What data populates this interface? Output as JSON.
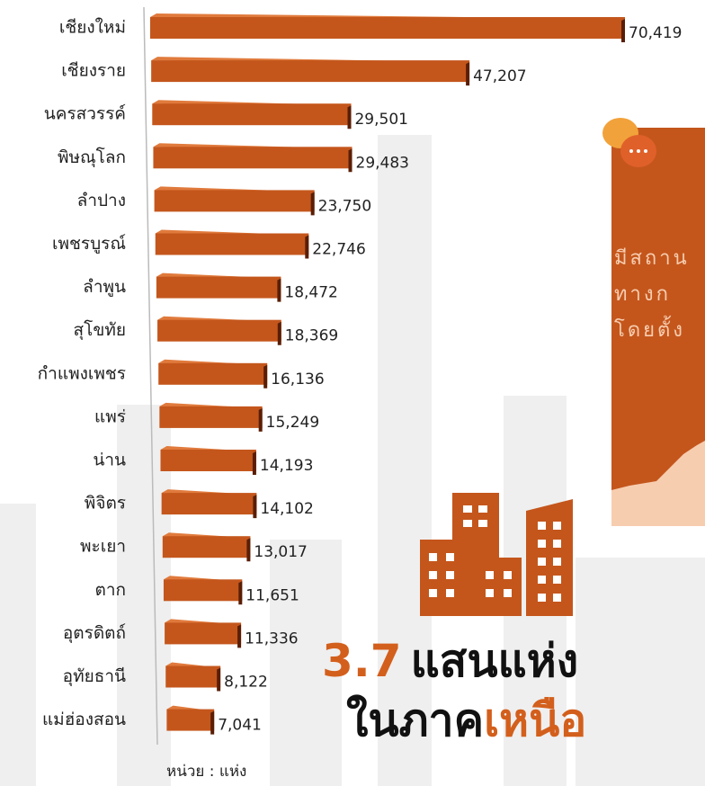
{
  "chart_data": {
    "type": "bar",
    "orientation": "horizontal",
    "categories": [
      "เชียงใหม่",
      "เชียงราย",
      "นครสวรรค์",
      "พิษณุโลก",
      "ลำปาง",
      "เพชรบูรณ์",
      "ลำพูน",
      "สุโขทัย",
      "กำแพงเพชร",
      "แพร่",
      "น่าน",
      "พิจิตร",
      "พะเยา",
      "ตาก",
      "อุตรดิตถ์",
      "อุทัยธานี",
      "แม่ฮ่องสอน"
    ],
    "values": [
      70419,
      47207,
      29501,
      29483,
      23750,
      22746,
      18472,
      18369,
      16136,
      15249,
      14193,
      14102,
      13017,
      11651,
      11336,
      8122,
      7041
    ],
    "value_labels": [
      "70,419",
      "47,207",
      "29,501",
      "29,483",
      "23,750",
      "22,746",
      "18,472",
      "18,369",
      "16,136",
      "15,249",
      "14,193",
      "14,102",
      "13,017",
      "11,651",
      "11,336",
      "8,122",
      "7,041"
    ],
    "color": "#c4561c",
    "unit_label": "หน่วย : แห่ง",
    "headline": [
      [
        {
          "text": "3.7",
          "color": "#d35f1c"
        },
        {
          "text": "แสนแห่ง",
          "color": "#111111"
        }
      ],
      [
        {
          "text": "ในภาค",
          "color": "#111111"
        },
        {
          "text": "เหนือ",
          "color": "#d35f1c"
        }
      ]
    ],
    "side_panel": [
      "มีสถาน",
      "ทางก",
      "โดยตั้ง"
    ]
  }
}
